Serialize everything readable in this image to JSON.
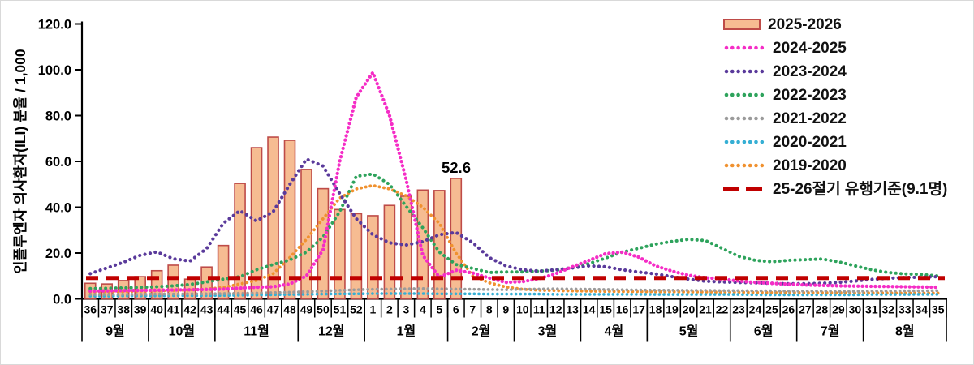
{
  "chart_data": {
    "type": "combo-bar-line",
    "ylabel": "인플루엔자 의사환자(ILI) 분율 / 1,000",
    "ylim": [
      0,
      120
    ],
    "ytick_labels": [
      "0.0",
      "20.0",
      "40.0",
      "60.0",
      "80.0",
      "100.0",
      "120.0"
    ],
    "x_week_labels": [
      "36",
      "37",
      "38",
      "39",
      "40",
      "41",
      "42",
      "43",
      "44",
      "45",
      "46",
      "47",
      "48",
      "49",
      "50",
      "51",
      "52",
      "1",
      "2",
      "3",
      "4",
      "5",
      "6",
      "7",
      "8",
      "9",
      "10",
      "11",
      "12",
      "13",
      "14",
      "15",
      "16",
      "17",
      "18",
      "19",
      "20",
      "21",
      "22",
      "23",
      "24",
      "25",
      "26",
      "27",
      "28",
      "29",
      "30",
      "31",
      "32",
      "33",
      "34",
      "35"
    ],
    "months": [
      {
        "label": "9월",
        "weeks": 4
      },
      {
        "label": "10월",
        "weeks": 4
      },
      {
        "label": "11월",
        "weeks": 5
      },
      {
        "label": "12월",
        "weeks": 4
      },
      {
        "label": "1월",
        "weeks": 5
      },
      {
        "label": "2월",
        "weeks": 4
      },
      {
        "label": "3월",
        "weeks": 4
      },
      {
        "label": "4월",
        "weeks": 4
      },
      {
        "label": "5월",
        "weeks": 5
      },
      {
        "label": "6월",
        "weeks": 4
      },
      {
        "label": "7월",
        "weeks": 4
      },
      {
        "label": "8월",
        "weeks": 5
      }
    ],
    "bar_series": {
      "name": "2025-2026",
      "fill": "#F6BC92",
      "border": "#BE4B48",
      "values": [
        6.8,
        6.5,
        8.0,
        9.7,
        12.3,
        14.7,
        8.6,
        13.9,
        23.3,
        50.4,
        66.0,
        70.6,
        69.2,
        56.5,
        48.1,
        39.0,
        37.2,
        36.3,
        40.8,
        44.8,
        47.5,
        47.3,
        52.6
      ]
    },
    "line_series": [
      {
        "name": "2024-2025",
        "color": "#F52DC6",
        "dot": 4.3,
        "gap": 5.2,
        "values": [
          3.4,
          3.5,
          3.6,
          3.7,
          3.8,
          3.9,
          4.0,
          4.1,
          4.3,
          4.7,
          5.1,
          5.3,
          6.5,
          10.0,
          21.5,
          60.0,
          88.0,
          98.8,
          80.0,
          52.0,
          19.0,
          9.5,
          12.5,
          11.3,
          9.1,
          7.2,
          7.5,
          8.8,
          11.0,
          14.0,
          16.8,
          19.7,
          20.4,
          18.2,
          14.4,
          12.1,
          10.3,
          9.2,
          8.7,
          7.8,
          7.2,
          6.8,
          6.4,
          6.1,
          5.9,
          5.7,
          5.6,
          5.5,
          5.4,
          5.3,
          5.2,
          5.1
        ]
      },
      {
        "name": "2023-2024",
        "color": "#5A3A9B",
        "dot": 4.2,
        "gap": 6.4,
        "values": [
          11.0,
          13.5,
          16.0,
          19.0,
          20.5,
          17.5,
          16.5,
          22.0,
          33.0,
          38.5,
          34.0,
          38.0,
          50.0,
          61.0,
          58.0,
          46.0,
          35.0,
          28.0,
          24.5,
          23.5,
          25.0,
          28.0,
          29.0,
          24.6,
          18.0,
          14.4,
          12.7,
          12.1,
          12.7,
          13.5,
          14.4,
          14.0,
          12.7,
          11.7,
          10.9,
          9.7,
          8.6,
          7.7,
          7.4,
          7.2,
          7.0,
          6.8,
          6.6,
          6.6,
          6.8,
          7.2,
          7.8,
          8.5,
          9.0,
          9.3,
          9.5,
          9.7
        ]
      },
      {
        "name": "2022-2023",
        "color": "#2EA35C",
        "dot": 4.0,
        "gap": 6.2,
        "values": [
          4.5,
          4.6,
          4.8,
          5.0,
          5.3,
          5.7,
          6.3,
          7.4,
          8.6,
          9.7,
          12.7,
          15.0,
          17.0,
          20.4,
          27.0,
          38.0,
          53.5,
          54.5,
          50.0,
          40.4,
          31.0,
          20.4,
          15.0,
          13.3,
          11.5,
          11.8,
          11.8,
          12.1,
          12.5,
          13.7,
          15.4,
          17.8,
          20.4,
          22.1,
          23.9,
          25.1,
          26.0,
          25.5,
          22.1,
          18.6,
          16.8,
          16.2,
          16.8,
          17.1,
          17.4,
          16.2,
          14.4,
          12.7,
          11.5,
          10.9,
          10.7,
          10.0
        ]
      },
      {
        "name": "2021-2022",
        "color": "#9B9B9B",
        "dot": 3.6,
        "gap": 5.6,
        "values": [
          1.9,
          1.9,
          2.0,
          2.0,
          2.1,
          2.1,
          2.2,
          2.2,
          2.3,
          2.4,
          2.5,
          2.7,
          2.9,
          3.1,
          3.4,
          3.7,
          4.0,
          4.2,
          4.3,
          4.4,
          4.5,
          4.4,
          4.3,
          4.2,
          4.1,
          4.0,
          4.2,
          4.3,
          4.4,
          4.3,
          4.2,
          4.1,
          4.0,
          3.9,
          3.8,
          3.8,
          3.7,
          3.7,
          3.6,
          3.6,
          3.5,
          3.5,
          3.4,
          3.4,
          3.4,
          3.3,
          3.3,
          3.4,
          3.4,
          3.5,
          3.5,
          3.6
        ]
      },
      {
        "name": "2020-2021",
        "color": "#36AFD4",
        "dot": 3.6,
        "gap": 5.6,
        "values": [
          1.2,
          1.2,
          1.3,
          1.3,
          1.3,
          1.4,
          1.4,
          1.4,
          1.5,
          1.6,
          1.7,
          1.8,
          1.9,
          2.0,
          2.1,
          2.2,
          2.2,
          2.3,
          2.3,
          2.3,
          2.3,
          2.2,
          2.2,
          2.2,
          2.1,
          2.1,
          2.1,
          2.1,
          2.0,
          2.0,
          2.0,
          2.0,
          2.0,
          2.0,
          1.9,
          1.9,
          1.9,
          1.9,
          1.9,
          1.9,
          1.8,
          1.8,
          1.8,
          1.8,
          1.8,
          1.8,
          1.8,
          1.9,
          1.9,
          1.9,
          2.0,
          2.0
        ]
      },
      {
        "name": "2019-2020",
        "color": "#F0912F",
        "dot": 3.8,
        "gap": 5.6,
        "values": [
          3.0,
          3.1,
          3.2,
          3.4,
          3.5,
          3.7,
          3.9,
          4.3,
          5.0,
          6.5,
          8.0,
          11.0,
          18.0,
          26.0,
          35.0,
          44.0,
          48.0,
          49.5,
          48.0,
          45.0,
          40.0,
          33.0,
          20.0,
          10.0,
          7.0,
          5.2,
          4.2,
          3.8,
          3.6,
          3.5,
          3.4,
          3.3,
          3.2,
          3.2,
          3.1,
          3.1,
          3.0,
          3.0,
          2.9,
          2.9,
          2.8,
          2.8,
          2.8,
          2.7,
          2.7,
          2.7,
          2.6,
          2.6,
          2.6,
          2.5,
          2.5,
          2.5
        ]
      }
    ],
    "threshold": {
      "name": "25-26절기 유행기준(9.1명)",
      "value": 9.1,
      "color": "#C00000"
    },
    "annotation": {
      "text": "52.6",
      "week_label": "6",
      "value": 52.6
    }
  },
  "legend": {
    "items": [
      {
        "label": "2025-2026",
        "swatch": "bar"
      },
      {
        "label": "2024-2025",
        "swatch": "dots",
        "color": "#F52DC6"
      },
      {
        "label": "2023-2024",
        "swatch": "dots",
        "color": "#5A3A9B"
      },
      {
        "label": "2022-2023",
        "swatch": "dots",
        "color": "#2EA35C"
      },
      {
        "label": "2021-2022",
        "swatch": "dots",
        "color": "#9B9B9B"
      },
      {
        "label": "2020-2021",
        "swatch": "dots",
        "color": "#36AFD4"
      },
      {
        "label": "2019-2020",
        "swatch": "dots",
        "color": "#F0912F"
      },
      {
        "label": "25-26절기 유행기준(9.1명)",
        "swatch": "dash",
        "color": "#C00000"
      }
    ]
  }
}
